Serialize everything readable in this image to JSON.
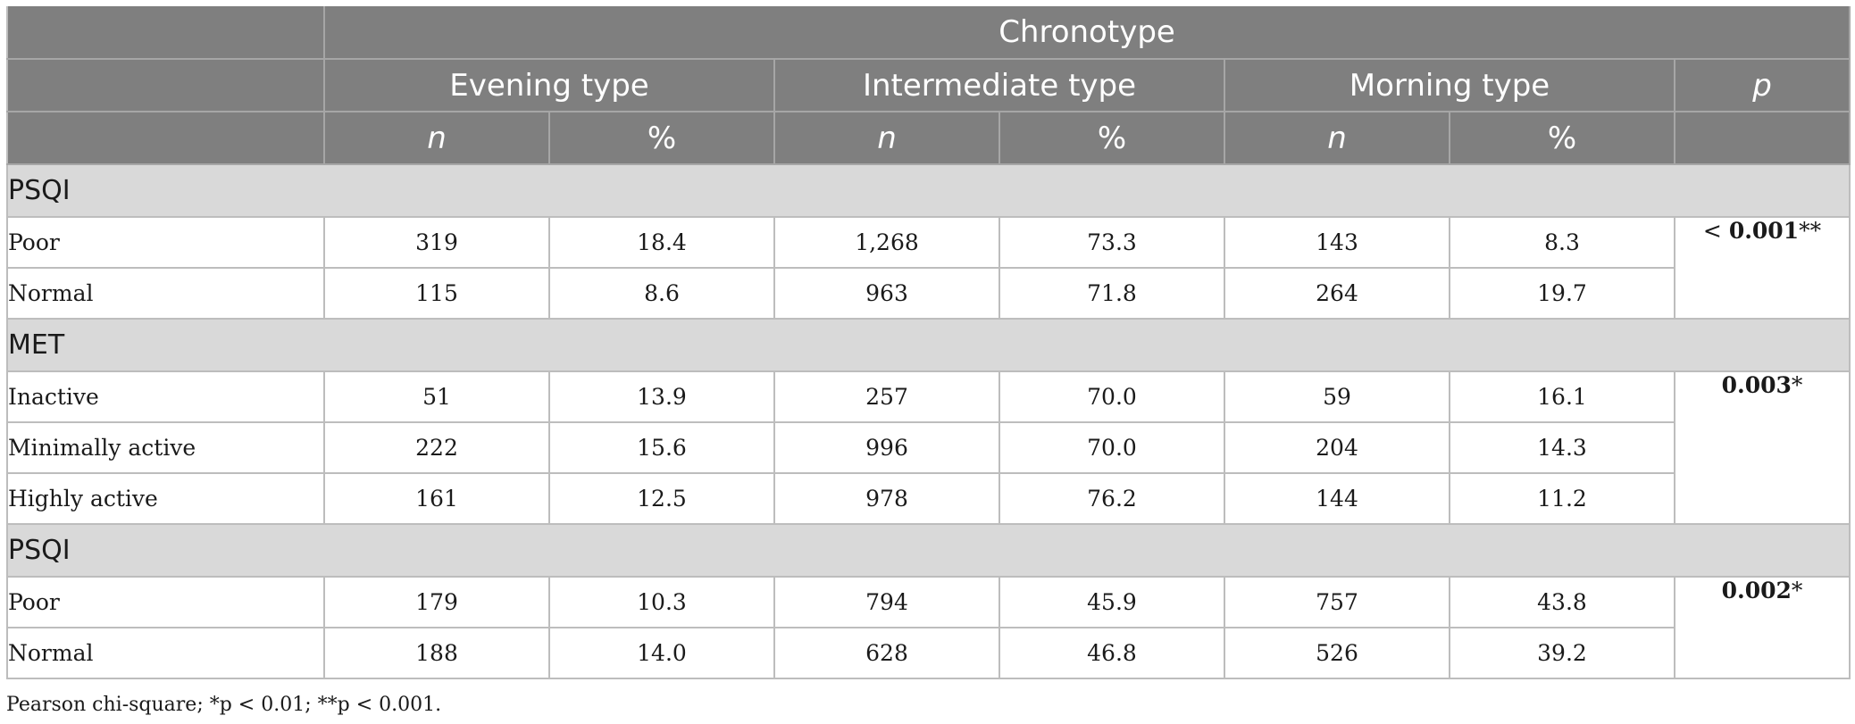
{
  "header": {
    "group_title": "Chronotype",
    "groups": [
      "Evening type",
      "Intermediate type",
      "Morning type"
    ],
    "p_label": "p",
    "sub_labels": [
      "n",
      "%",
      "n",
      "%",
      "n",
      "%"
    ]
  },
  "sections": [
    {
      "title": "PSQI",
      "p_prefix": "< ",
      "p_value": "0.001",
      "p_suffix": "**",
      "rows": [
        {
          "label": "Poor",
          "values": [
            "319",
            "18.4",
            "1,268",
            "73.3",
            "143",
            "8.3"
          ]
        },
        {
          "label": "Normal",
          "values": [
            "115",
            "8.6",
            "963",
            "71.8",
            "264",
            "19.7"
          ]
        }
      ]
    },
    {
      "title": "MET",
      "p_prefix": "",
      "p_value": "0.003",
      "p_suffix": "*",
      "rows": [
        {
          "label": "Inactive",
          "values": [
            "51",
            "13.9",
            "257",
            "70.0",
            "59",
            "16.1"
          ]
        },
        {
          "label": "Minimally active",
          "values": [
            "222",
            "15.6",
            "996",
            "70.0",
            "204",
            "14.3"
          ]
        },
        {
          "label": "Highly active",
          "values": [
            "161",
            "12.5",
            "978",
            "76.2",
            "144",
            "11.2"
          ]
        }
      ]
    },
    {
      "title": "PSQI",
      "p_prefix": "",
      "p_value": "0.002",
      "p_suffix": "*",
      "rows": [
        {
          "label": "Poor",
          "values": [
            "179",
            "10.3",
            "794",
            "45.9",
            "757",
            "43.8"
          ]
        },
        {
          "label": "Normal",
          "values": [
            "188",
            "14.0",
            "628",
            "46.8",
            "526",
            "39.2"
          ]
        }
      ]
    }
  ],
  "footnote": "Pearson chi-square; *p < 0.01; **p < 0.001."
}
